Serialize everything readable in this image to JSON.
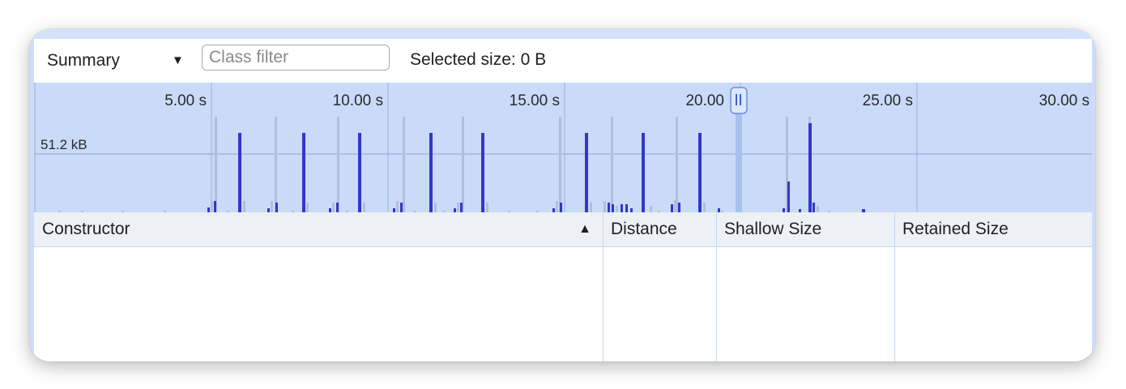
{
  "toolbar": {
    "view_select": {
      "value": "Summary"
    },
    "class_filter": {
      "placeholder": "Class filter",
      "value": ""
    },
    "selected_size": "Selected size: 0 B"
  },
  "overview": {
    "time_labels": [
      "5.00 s",
      "10.00 s",
      "15.00 s",
      "20.00",
      "25.00 s",
      "30.00 s"
    ],
    "size_label": "51.2 kB",
    "selection_handle_icon": "pause-bars-icon",
    "colors": {
      "background": "#c9dbf8",
      "allocated": "#3138c9",
      "freed": "#b3bdd8",
      "grid": "#9bb0d9"
    }
  },
  "grid": {
    "columns": [
      {
        "label": "Constructor"
      },
      {
        "label": "Distance"
      },
      {
        "label": "Shallow Size"
      },
      {
        "label": "Retained Size"
      }
    ],
    "sort_icon": "triangle-up-icon"
  }
}
